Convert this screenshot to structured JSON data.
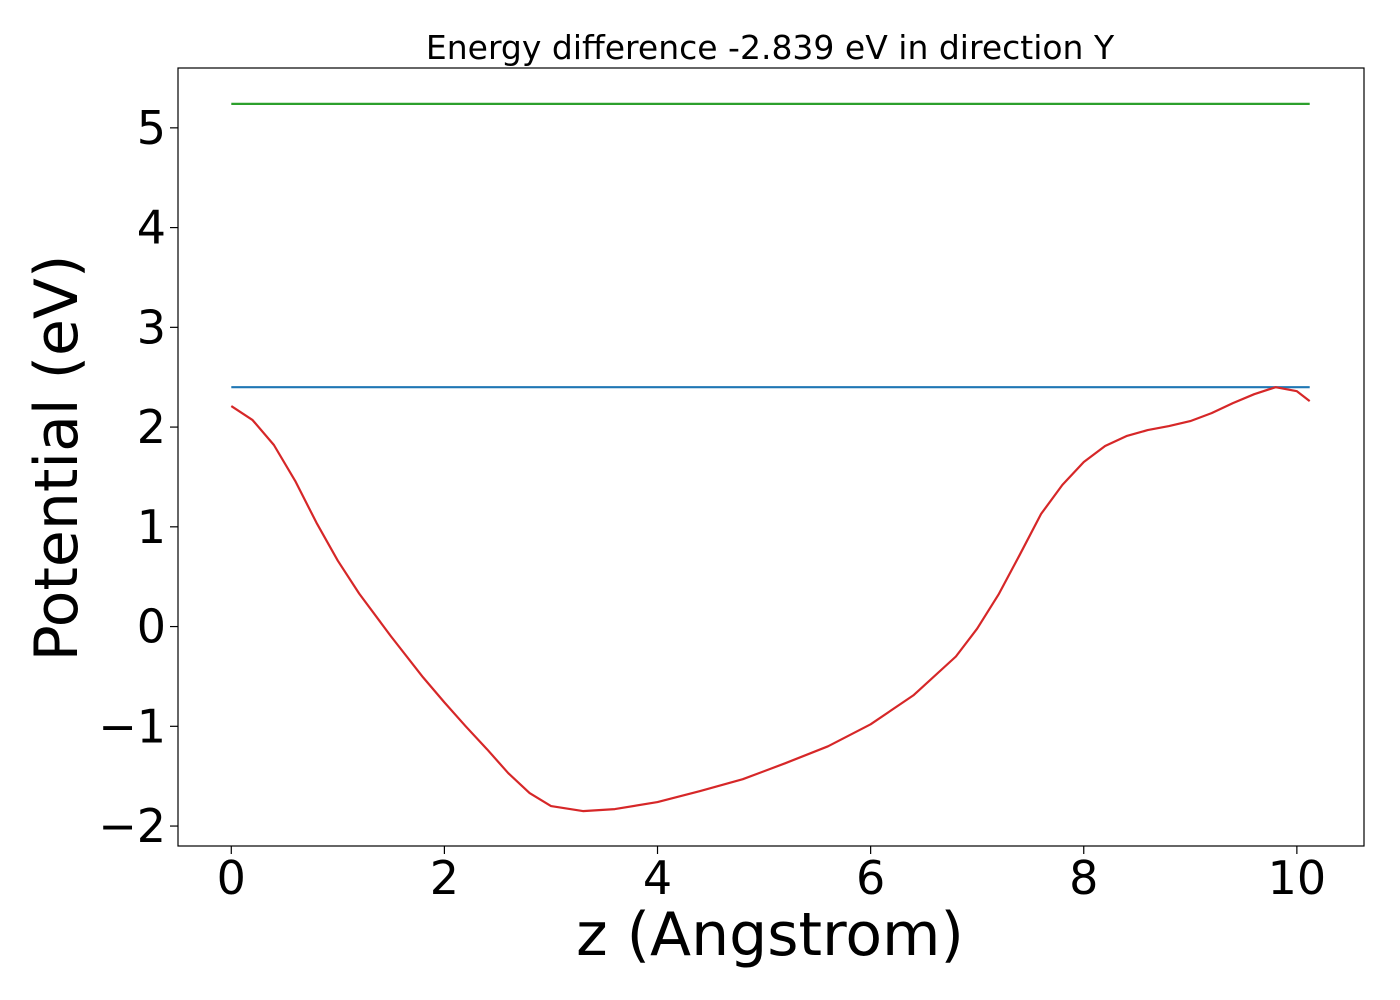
{
  "chart_data": {
    "type": "line",
    "title": "Energy difference -2.839 eV in direction Y",
    "xlabel": "z (Angstrom)",
    "ylabel": "Potential (eV)",
    "xlim": [
      -0.5,
      10.63
    ],
    "ylim": [
      -2.2,
      5.6
    ],
    "xticks": [
      0,
      2,
      4,
      6,
      8,
      10
    ],
    "xtick_labels": [
      "0",
      "2",
      "4",
      "6",
      "8",
      "10"
    ],
    "yticks": [
      -2,
      -1,
      0,
      1,
      2,
      3,
      4,
      5
    ],
    "ytick_labels": [
      "−2",
      "−1",
      "0",
      "1",
      "2",
      "3",
      "4",
      "5"
    ],
    "grid": false,
    "legend": "none",
    "series": [
      {
        "color": "#2ca02c",
        "x": [
          0,
          10.12
        ],
        "y": [
          5.24,
          5.24
        ]
      },
      {
        "color": "#1f77b4",
        "x": [
          0,
          10.12
        ],
        "y": [
          2.4,
          2.4
        ]
      },
      {
        "color": "#d62728",
        "x": [
          0,
          0.2,
          0.4,
          0.6,
          0.8,
          1.0,
          1.2,
          1.5,
          1.8,
          2.0,
          2.2,
          2.4,
          2.6,
          2.8,
          3.0,
          3.3,
          3.6,
          4.0,
          4.4,
          4.8,
          5.2,
          5.6,
          6.0,
          6.4,
          6.8,
          7.0,
          7.2,
          7.4,
          7.6,
          7.8,
          8.0,
          8.2,
          8.4,
          8.6,
          8.8,
          9.0,
          9.2,
          9.4,
          9.6,
          9.8,
          10.0,
          10.12
        ],
        "y": [
          2.21,
          2.07,
          1.82,
          1.46,
          1.04,
          0.66,
          0.33,
          -0.1,
          -0.51,
          -0.76,
          -1.0,
          -1.23,
          -1.47,
          -1.67,
          -1.8,
          -1.85,
          -1.83,
          -1.76,
          -1.65,
          -1.53,
          -1.37,
          -1.2,
          -0.98,
          -0.69,
          -0.3,
          -0.02,
          0.32,
          0.72,
          1.13,
          1.42,
          1.65,
          1.81,
          1.91,
          1.97,
          2.01,
          2.06,
          2.14,
          2.24,
          2.33,
          2.4,
          2.36,
          2.26
        ]
      }
    ]
  }
}
